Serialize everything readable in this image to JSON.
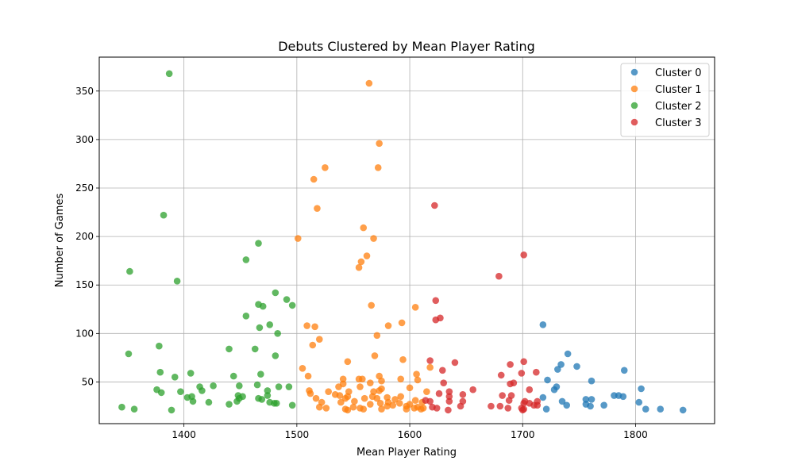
{
  "chart_data": {
    "type": "scatter",
    "title": "Debuts Clustered by Mean Player Rating",
    "xlabel": "Mean Player Rating",
    "ylabel": "Number of Games",
    "xlim": [
      1325,
      1870
    ],
    "ylim": [
      7,
      385
    ],
    "xticks": [
      1400,
      1500,
      1600,
      1700,
      1800
    ],
    "yticks": [
      50,
      100,
      150,
      200,
      250,
      300,
      350
    ],
    "grid": true,
    "legend_position": "top-right",
    "series": [
      {
        "name": "Cluster 0",
        "color": "#1f77b4",
        "points": [
          [
            1718,
            109
          ],
          [
            1740,
            79
          ],
          [
            1734,
            68
          ],
          [
            1748,
            66
          ],
          [
            1731,
            63
          ],
          [
            1790,
            62
          ],
          [
            1722,
            52
          ],
          [
            1761,
            51
          ],
          [
            1730,
            45
          ],
          [
            1805,
            43
          ],
          [
            1728,
            42
          ],
          [
            1781,
            36
          ],
          [
            1785,
            36
          ],
          [
            1789,
            35
          ],
          [
            1718,
            34
          ],
          [
            1756,
            32
          ],
          [
            1761,
            32
          ],
          [
            1735,
            30
          ],
          [
            1803,
            29
          ],
          [
            1756,
            27
          ],
          [
            1739,
            26
          ],
          [
            1772,
            26
          ],
          [
            1760,
            25
          ],
          [
            1721,
            22
          ],
          [
            1809,
            22
          ],
          [
            1822,
            22
          ],
          [
            1842,
            21
          ]
        ]
      },
      {
        "name": "Cluster 1",
        "color": "#ff7f0e",
        "points": [
          [
            1564,
            358
          ],
          [
            1573,
            296
          ],
          [
            1525,
            271
          ],
          [
            1572,
            271
          ],
          [
            1515,
            259
          ],
          [
            1518,
            229
          ],
          [
            1559,
            209
          ],
          [
            1568,
            198
          ],
          [
            1501,
            198
          ],
          [
            1562,
            180
          ],
          [
            1557,
            174
          ],
          [
            1555,
            168
          ],
          [
            1566,
            129
          ],
          [
            1605,
            127
          ],
          [
            1593,
            111
          ],
          [
            1509,
            108
          ],
          [
            1516,
            107
          ],
          [
            1581,
            108
          ],
          [
            1571,
            98
          ],
          [
            1520,
            94
          ],
          [
            1514,
            88
          ],
          [
            1569,
            77
          ],
          [
            1594,
            73
          ],
          [
            1545,
            71
          ],
          [
            1618,
            65
          ],
          [
            1505,
            64
          ],
          [
            1606,
            58
          ],
          [
            1510,
            56
          ],
          [
            1573,
            56
          ],
          [
            1558,
            53
          ],
          [
            1555,
            53
          ],
          [
            1592,
            53
          ],
          [
            1541,
            53
          ],
          [
            1607,
            52
          ],
          [
            1575,
            51
          ],
          [
            1565,
            49
          ],
          [
            1541,
            48
          ],
          [
            1556,
            45
          ],
          [
            1537,
            45
          ],
          [
            1600,
            44
          ],
          [
            1575,
            43
          ],
          [
            1573,
            41
          ],
          [
            1511,
            41
          ],
          [
            1528,
            40
          ],
          [
            1546,
            40
          ],
          [
            1568,
            40
          ],
          [
            1615,
            40
          ],
          [
            1512,
            38
          ],
          [
            1534,
            37
          ],
          [
            1538,
            36
          ],
          [
            1545,
            35
          ],
          [
            1567,
            35
          ],
          [
            1580,
            34
          ],
          [
            1592,
            35
          ],
          [
            1560,
            33
          ],
          [
            1571,
            33
          ],
          [
            1587,
            32
          ],
          [
            1605,
            31
          ],
          [
            1543,
            33
          ],
          [
            1517,
            33
          ],
          [
            1581,
            29
          ],
          [
            1591,
            28
          ],
          [
            1574,
            28
          ],
          [
            1551,
            30
          ],
          [
            1522,
            29
          ],
          [
            1611,
            29
          ],
          [
            1539,
            29
          ],
          [
            1600,
            27
          ],
          [
            1565,
            27
          ],
          [
            1585,
            26
          ],
          [
            1580,
            25
          ],
          [
            1597,
            25
          ],
          [
            1607,
            24
          ],
          [
            1520,
            24
          ],
          [
            1604,
            23
          ],
          [
            1550,
            24
          ],
          [
            1526,
            23
          ],
          [
            1556,
            23
          ],
          [
            1612,
            23
          ],
          [
            1543,
            22
          ],
          [
            1575,
            22
          ],
          [
            1597,
            22
          ],
          [
            1559,
            22
          ],
          [
            1545,
            21
          ],
          [
            1610,
            22
          ]
        ]
      },
      {
        "name": "Cluster 2",
        "color": "#2ca02c",
        "points": [
          [
            1387,
            368
          ],
          [
            1382,
            222
          ],
          [
            1466,
            193
          ],
          [
            1352,
            164
          ],
          [
            1455,
            176
          ],
          [
            1394,
            154
          ],
          [
            1481,
            142
          ],
          [
            1466,
            130
          ],
          [
            1491,
            135
          ],
          [
            1470,
            128
          ],
          [
            1496,
            129
          ],
          [
            1455,
            118
          ],
          [
            1476,
            109
          ],
          [
            1467,
            106
          ],
          [
            1483,
            100
          ],
          [
            1378,
            87
          ],
          [
            1440,
            84
          ],
          [
            1463,
            84
          ],
          [
            1351,
            79
          ],
          [
            1481,
            77
          ],
          [
            1379,
            60
          ],
          [
            1406,
            59
          ],
          [
            1468,
            58
          ],
          [
            1444,
            56
          ],
          [
            1392,
            55
          ],
          [
            1426,
            46
          ],
          [
            1465,
            47
          ],
          [
            1484,
            45
          ],
          [
            1493,
            45
          ],
          [
            1414,
            45
          ],
          [
            1449,
            46
          ],
          [
            1376,
            42
          ],
          [
            1416,
            41
          ],
          [
            1474,
            41
          ],
          [
            1380,
            39
          ],
          [
            1397,
            40
          ],
          [
            1407,
            35
          ],
          [
            1448,
            36
          ],
          [
            1403,
            34
          ],
          [
            1474,
            36
          ],
          [
            1449,
            33
          ],
          [
            1466,
            33
          ],
          [
            1452,
            35
          ],
          [
            1469,
            32
          ],
          [
            1408,
            30
          ],
          [
            1447,
            30
          ],
          [
            1476,
            29
          ],
          [
            1422,
            29
          ],
          [
            1480,
            28
          ],
          [
            1482,
            28
          ],
          [
            1440,
            27
          ],
          [
            1496,
            26
          ],
          [
            1345,
            24
          ],
          [
            1356,
            22
          ],
          [
            1389,
            21
          ]
        ]
      },
      {
        "name": "Cluster 3",
        "color": "#d62728",
        "points": [
          [
            1622,
            232
          ],
          [
            1701,
            181
          ],
          [
            1679,
            159
          ],
          [
            1623,
            134
          ],
          [
            1627,
            116
          ],
          [
            1623,
            114
          ],
          [
            1640,
            70
          ],
          [
            1618,
            72
          ],
          [
            1689,
            68
          ],
          [
            1701,
            71
          ],
          [
            1629,
            62
          ],
          [
            1699,
            59
          ],
          [
            1712,
            60
          ],
          [
            1681,
            57
          ],
          [
            1689,
            48
          ],
          [
            1630,
            49
          ],
          [
            1692,
            49
          ],
          [
            1656,
            42
          ],
          [
            1706,
            42
          ],
          [
            1635,
            40
          ],
          [
            1626,
            38
          ],
          [
            1647,
            37
          ],
          [
            1690,
            36
          ],
          [
            1682,
            36
          ],
          [
            1635,
            35
          ],
          [
            1688,
            31
          ],
          [
            1614,
            31
          ],
          [
            1702,
            30
          ],
          [
            1618,
            30
          ],
          [
            1635,
            30
          ],
          [
            1647,
            30
          ],
          [
            1713,
            30
          ],
          [
            1706,
            28
          ],
          [
            1701,
            28
          ],
          [
            1710,
            26
          ],
          [
            1713,
            26
          ],
          [
            1672,
            25
          ],
          [
            1680,
            25
          ],
          [
            1645,
            25
          ],
          [
            1620,
            24
          ],
          [
            1624,
            23
          ],
          [
            1699,
            23
          ],
          [
            1687,
            23
          ],
          [
            1701,
            22
          ],
          [
            1634,
            21
          ],
          [
            1700,
            21
          ]
        ]
      }
    ]
  }
}
